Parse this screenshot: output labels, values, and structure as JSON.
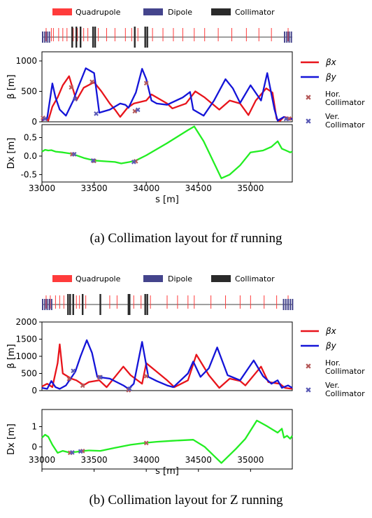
{
  "legend_top": {
    "quadrupole": "Quadrupole",
    "dipole": "Dipole",
    "collimator": "Collimator"
  },
  "legend_side": {
    "beta_x": "βx",
    "beta_y": "βy",
    "hor_collimator": [
      "Hor.",
      "Collimator"
    ],
    "ver_collimator": [
      "Ver.",
      "Collimator"
    ]
  },
  "colors": {
    "quadrupole": "#ff3b3b",
    "dipole": "#44448c",
    "collimator": "#2a2a2a",
    "beta_x": "#e8141b",
    "beta_y": "#1414d8",
    "dispersion": "#22ee22",
    "hor_marker": "#b55a5a",
    "ver_marker": "#5a5ab5"
  },
  "captions": {
    "a_prefix": "(a) Collimation layout for ",
    "a_suffix": " running",
    "a_math": "tt̄",
    "b": "(b) Collimation layout for Z running"
  },
  "chart_data": [
    {
      "panel": "a",
      "type": "line",
      "x_domain": [
        33000,
        35400
      ],
      "xticks": [
        33000,
        33500,
        34000,
        34500,
        35000
      ],
      "xlabel": "s [m]",
      "layout": {
        "dipoles": [
          [
            33000,
            33080
          ],
          [
            35320,
            35400
          ]
        ],
        "quadrupoles": [
          33040,
          33090,
          33110,
          33160,
          33200,
          33240,
          33300,
          33340,
          33400,
          33440,
          33540,
          33620,
          33700,
          33800,
          33860,
          33920,
          33990,
          34060,
          34160,
          34260,
          34350,
          34460,
          34560,
          34690,
          34820,
          34960,
          35080,
          35200,
          35360
        ],
        "collimators": [
          33290,
          33330,
          33370,
          33490,
          33510,
          33890,
          33990,
          34010
        ]
      },
      "beta": {
        "ylabel": "β [m]",
        "ylim": [
          0,
          1150
        ],
        "yticks": [
          0,
          500,
          1000
        ],
        "beta_x": [
          [
            33000,
            20
          ],
          [
            33030,
            60
          ],
          [
            33060,
            20
          ],
          [
            33100,
            250
          ],
          [
            33150,
            400
          ],
          [
            33200,
            600
          ],
          [
            33260,
            750
          ],
          [
            33330,
            350
          ],
          [
            33400,
            560
          ],
          [
            33500,
            650
          ],
          [
            33570,
            500
          ],
          [
            33650,
            300
          ],
          [
            33700,
            200
          ],
          [
            33750,
            80
          ],
          [
            33820,
            230
          ],
          [
            33880,
            300
          ],
          [
            34000,
            350
          ],
          [
            34050,
            450
          ],
          [
            34200,
            300
          ],
          [
            34250,
            220
          ],
          [
            34380,
            300
          ],
          [
            34470,
            500
          ],
          [
            34560,
            400
          ],
          [
            34700,
            200
          ],
          [
            34800,
            350
          ],
          [
            34900,
            300
          ],
          [
            34980,
            110
          ],
          [
            35050,
            350
          ],
          [
            35150,
            550
          ],
          [
            35210,
            480
          ],
          [
            35250,
            50
          ],
          [
            35280,
            10
          ],
          [
            35320,
            80
          ],
          [
            35400,
            50
          ]
        ],
        "beta_y": [
          [
            33000,
            30
          ],
          [
            33050,
            60
          ],
          [
            33100,
            630
          ],
          [
            33130,
            400
          ],
          [
            33170,
            200
          ],
          [
            33230,
            100
          ],
          [
            33300,
            350
          ],
          [
            33350,
            580
          ],
          [
            33420,
            880
          ],
          [
            33500,
            800
          ],
          [
            33550,
            150
          ],
          [
            33650,
            200
          ],
          [
            33750,
            300
          ],
          [
            33800,
            280
          ],
          [
            33830,
            230
          ],
          [
            33900,
            480
          ],
          [
            33960,
            870
          ],
          [
            34000,
            700
          ],
          [
            34050,
            350
          ],
          [
            34100,
            300
          ],
          [
            34200,
            280
          ],
          [
            34350,
            400
          ],
          [
            34420,
            490
          ],
          [
            34450,
            200
          ],
          [
            34550,
            100
          ],
          [
            34650,
            350
          ],
          [
            34760,
            700
          ],
          [
            34830,
            550
          ],
          [
            34900,
            310
          ],
          [
            35000,
            600
          ],
          [
            35100,
            350
          ],
          [
            35160,
            800
          ],
          [
            35230,
            200
          ],
          [
            35260,
            20
          ],
          [
            35320,
            80
          ],
          [
            35360,
            30
          ],
          [
            35400,
            50
          ]
        ],
        "hor_collimators": [
          [
            33280,
            570
          ],
          [
            33480,
            660
          ],
          [
            33890,
            180
          ],
          [
            34000,
            640
          ],
          [
            33010,
            70
          ],
          [
            35370,
            60
          ]
        ],
        "ver_collimators": [
          [
            33320,
            380
          ],
          [
            33520,
            140
          ],
          [
            33920,
            200
          ],
          [
            33030,
            50
          ],
          [
            35340,
            50
          ]
        ]
      },
      "dispersion": {
        "ylabel": "Dx [m]",
        "ylim": [
          -0.7,
          0.85
        ],
        "yticks": [
          -0.5,
          0.0,
          0.5
        ],
        "dx": [
          [
            33000,
            0.12
          ],
          [
            33030,
            0.17
          ],
          [
            33060,
            0.15
          ],
          [
            33090,
            0.16
          ],
          [
            33130,
            0.12
          ],
          [
            33200,
            0.1
          ],
          [
            33290,
            0.06
          ],
          [
            33400,
            -0.05
          ],
          [
            33500,
            -0.12
          ],
          [
            33600,
            -0.14
          ],
          [
            33700,
            -0.16
          ],
          [
            33760,
            -0.2
          ],
          [
            33840,
            -0.16
          ],
          [
            33900,
            -0.12
          ],
          [
            34000,
            0.02
          ],
          [
            34200,
            0.35
          ],
          [
            34400,
            0.7
          ],
          [
            34460,
            0.8
          ],
          [
            34550,
            0.4
          ],
          [
            34720,
            -0.6
          ],
          [
            34800,
            -0.5
          ],
          [
            34900,
            -0.25
          ],
          [
            35000,
            0.1
          ],
          [
            35120,
            0.15
          ],
          [
            35200,
            0.25
          ],
          [
            35260,
            0.4
          ],
          [
            35300,
            0.2
          ],
          [
            35340,
            0.15
          ],
          [
            35380,
            0.1
          ],
          [
            35400,
            0.12
          ]
        ],
        "hor_collimators": [
          [
            33290,
            0.06
          ],
          [
            33500,
            -0.12
          ],
          [
            33900,
            -0.13
          ]
        ],
        "ver_collimators": [
          [
            33310,
            0.06
          ],
          [
            33490,
            -0.11
          ],
          [
            33880,
            -0.15
          ]
        ]
      }
    },
    {
      "panel": "b",
      "type": "line",
      "x_domain": [
        33000,
        35400
      ],
      "xticks": [
        33000,
        33500,
        34000,
        34500,
        35000
      ],
      "xlabel": "s [m]",
      "layout": {
        "dipoles": [
          [
            33000,
            33090
          ],
          [
            35310,
            35400
          ]
        ],
        "quadrupoles": [
          33040,
          33080,
          33130,
          33170,
          33210,
          33250,
          33330,
          33360,
          33420,
          33560,
          33650,
          33720,
          33880,
          33950,
          34040,
          34200,
          34300,
          34400,
          34460,
          34620,
          34760,
          34900,
          35000,
          35130,
          35250,
          35360
        ],
        "collimators": [
          33250,
          33270,
          33300,
          33390,
          33560,
          33830,
          33840,
          33990,
          34010
        ]
      },
      "beta": {
        "ylabel": "β [m]",
        "ylim": [
          0,
          2000
        ],
        "yticks": [
          0,
          500,
          1000,
          1500,
          2000
        ],
        "beta_x": [
          [
            33000,
            120
          ],
          [
            33050,
            200
          ],
          [
            33100,
            100
          ],
          [
            33150,
            800
          ],
          [
            33170,
            1350
          ],
          [
            33200,
            500
          ],
          [
            33280,
            350
          ],
          [
            33330,
            300
          ],
          [
            33400,
            160
          ],
          [
            33450,
            250
          ],
          [
            33550,
            300
          ],
          [
            33620,
            100
          ],
          [
            33780,
            700
          ],
          [
            33850,
            450
          ],
          [
            33960,
            200
          ],
          [
            34000,
            800
          ],
          [
            34100,
            550
          ],
          [
            34200,
            300
          ],
          [
            34270,
            100
          ],
          [
            34400,
            300
          ],
          [
            34480,
            1050
          ],
          [
            34600,
            450
          ],
          [
            34700,
            80
          ],
          [
            34800,
            350
          ],
          [
            34900,
            280
          ],
          [
            34950,
            150
          ],
          [
            35100,
            700
          ],
          [
            35170,
            250
          ],
          [
            35280,
            200
          ],
          [
            35330,
            80
          ],
          [
            35400,
            50
          ]
        ],
        "beta_y": [
          [
            33000,
            80
          ],
          [
            33050,
            50
          ],
          [
            33090,
            280
          ],
          [
            33130,
            100
          ],
          [
            33170,
            50
          ],
          [
            33230,
            150
          ],
          [
            33320,
            550
          ],
          [
            33370,
            1000
          ],
          [
            33430,
            1470
          ],
          [
            33480,
            1100
          ],
          [
            33530,
            400
          ],
          [
            33650,
            350
          ],
          [
            33780,
            150
          ],
          [
            33830,
            50
          ],
          [
            33880,
            200
          ],
          [
            33960,
            1420
          ],
          [
            34020,
            400
          ],
          [
            34100,
            280
          ],
          [
            34200,
            150
          ],
          [
            34260,
            100
          ],
          [
            34400,
            500
          ],
          [
            34450,
            850
          ],
          [
            34520,
            400
          ],
          [
            34600,
            650
          ],
          [
            34680,
            1260
          ],
          [
            34780,
            450
          ],
          [
            34900,
            300
          ],
          [
            35030,
            880
          ],
          [
            35120,
            420
          ],
          [
            35200,
            200
          ],
          [
            35260,
            300
          ],
          [
            35300,
            80
          ],
          [
            35360,
            150
          ],
          [
            35400,
            80
          ]
        ],
        "hor_collimators": [
          [
            33260,
            350
          ],
          [
            33390,
            150
          ],
          [
            33550,
            400
          ],
          [
            33830,
            20
          ],
          [
            34000,
            430
          ]
        ],
        "ver_collimators": [
          [
            33300,
            580
          ],
          [
            33560,
            400
          ],
          [
            33840,
            60
          ]
        ]
      },
      "dispersion": {
        "ylabel": "Dx [m]",
        "ylim": [
          -1.1,
          1.85
        ],
        "yticks": [
          0,
          1
        ],
        "dx": [
          [
            33000,
            0.45
          ],
          [
            33030,
            0.6
          ],
          [
            33060,
            0.5
          ],
          [
            33100,
            0.1
          ],
          [
            33150,
            -0.3
          ],
          [
            33200,
            -0.2
          ],
          [
            33260,
            -0.28
          ],
          [
            33330,
            -0.25
          ],
          [
            33400,
            -0.2
          ],
          [
            33450,
            -0.18
          ],
          [
            33560,
            -0.2
          ],
          [
            33700,
            -0.05
          ],
          [
            33850,
            0.1
          ],
          [
            34000,
            0.2
          ],
          [
            34100,
            0.25
          ],
          [
            34250,
            0.3
          ],
          [
            34450,
            0.35
          ],
          [
            34560,
            0.0
          ],
          [
            34720,
            -0.8
          ],
          [
            34860,
            -0.1
          ],
          [
            34950,
            0.4
          ],
          [
            35060,
            1.3
          ],
          [
            35150,
            1.05
          ],
          [
            35260,
            0.7
          ],
          [
            35300,
            0.9
          ],
          [
            35320,
            0.45
          ],
          [
            35350,
            0.55
          ],
          [
            35380,
            0.4
          ],
          [
            35400,
            0.55
          ]
        ],
        "hor_collimators": [
          [
            33270,
            -0.28
          ],
          [
            33390,
            -0.2
          ],
          [
            34000,
            0.2
          ]
        ],
        "ver_collimators": [
          [
            33290,
            -0.27
          ],
          [
            33370,
            -0.21
          ]
        ]
      }
    }
  ]
}
